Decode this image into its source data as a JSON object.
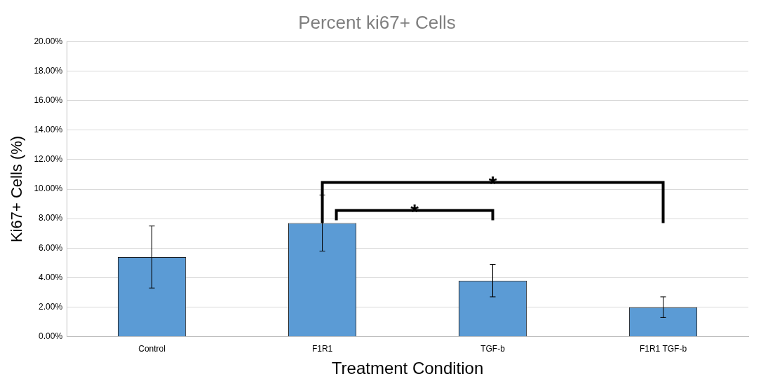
{
  "chart_data": {
    "type": "bar",
    "title": "Percent ki67+ Cells",
    "xlabel": "Treatment Condition",
    "ylabel": "Ki67+ Cells (%)",
    "categories": [
      "Control",
      "F1R1",
      "TGF-b",
      "F1R1 TGF-b"
    ],
    "series": [
      {
        "color": "#5b9bd5",
        "values": [
          5.4,
          7.7,
          3.8,
          2.0
        ],
        "errors": [
          2.1,
          1.9,
          1.1,
          0.7
        ]
      }
    ],
    "ylim": [
      0,
      20
    ],
    "yticks": [
      {
        "value": 0,
        "label": "0.00%"
      },
      {
        "value": 2,
        "label": "2.00%"
      },
      {
        "value": 4,
        "label": "4.00%"
      },
      {
        "value": 6,
        "label": "6.00%"
      },
      {
        "value": 8,
        "label": "8.00%"
      },
      {
        "value": 10,
        "label": "10.00%"
      },
      {
        "value": 12,
        "label": "12.00%"
      },
      {
        "value": 14,
        "label": "14.00%"
      },
      {
        "value": 16,
        "label": "16.00%"
      },
      {
        "value": 18,
        "label": "18.00%"
      },
      {
        "value": 20,
        "label": "20.00%"
      }
    ],
    "grid": "y",
    "legend": false,
    "annotations": [
      "*",
      "*"
    ]
  }
}
